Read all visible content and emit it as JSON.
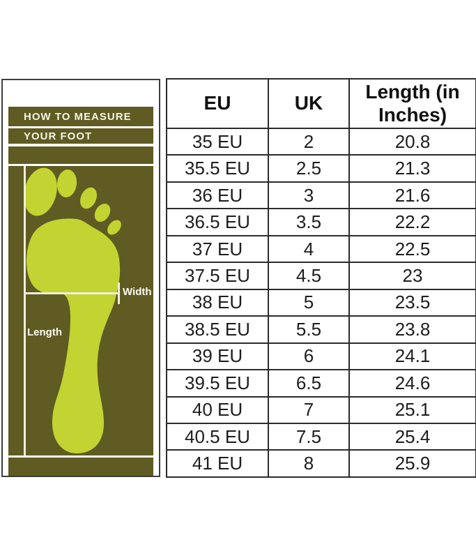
{
  "measure_panel": {
    "heading_line1": "HOW TO MEASURE",
    "heading_line2": "YOUR FOOT",
    "width_label": "Width",
    "length_label": "Length"
  },
  "chart_data": {
    "type": "table",
    "title": "Shoe size conversion chart with foot measuring guide",
    "columns": [
      "EU",
      "UK",
      "Length (in Inches)"
    ],
    "rows": [
      [
        "35 EU",
        "2",
        "20.8"
      ],
      [
        "35.5 EU",
        "2.5",
        "21.3"
      ],
      [
        "36 EU",
        "3",
        "21.6"
      ],
      [
        "36.5 EU",
        "3.5",
        "22.2"
      ],
      [
        "37 EU",
        "4",
        "22.5"
      ],
      [
        "37.5 EU",
        "4.5",
        "23"
      ],
      [
        "38 EU",
        "5",
        "23.5"
      ],
      [
        "38.5 EU",
        "5.5",
        "23.8"
      ],
      [
        "39 EU",
        "6",
        "24.1"
      ],
      [
        "39.5 EU",
        "6.5",
        "24.6"
      ],
      [
        "40 EU",
        "7",
        "25.1"
      ],
      [
        "40.5 EU",
        "7.5",
        "25.4"
      ],
      [
        "41 EU",
        "8",
        "25.9"
      ]
    ]
  },
  "colors": {
    "olive": "#5f5b22",
    "lime": "#c3d332",
    "cream": "#f0eedd",
    "panel_border": "#3e3e3e",
    "table_border": "#2b2b2b",
    "table_text": "#1d1d1d"
  }
}
